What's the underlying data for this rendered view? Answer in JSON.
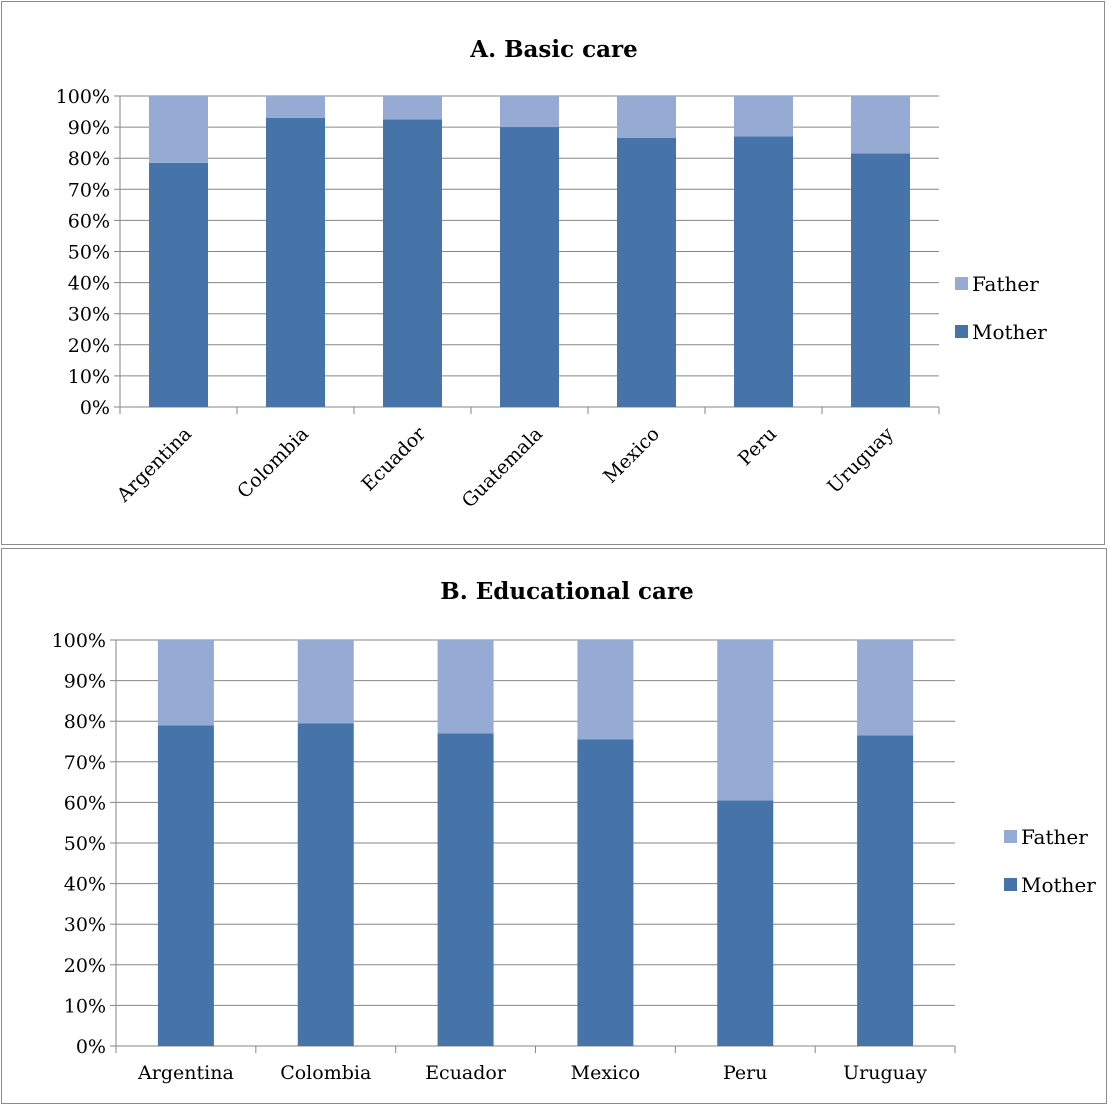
{
  "colors": {
    "mother": "#4674a8",
    "father": "#95abd3"
  },
  "chart_data": [
    {
      "type": "bar",
      "stacked": "percent",
      "title": "A. Basic care",
      "categories": [
        "Argentina",
        "Colombia",
        "Ecuador",
        "Guatemala",
        "Mexico",
        "Peru",
        "Uruguay"
      ],
      "series": [
        {
          "name": "Mother",
          "values": [
            78.5,
            93,
            92.5,
            90,
            86.5,
            87,
            81.5
          ]
        },
        {
          "name": "Father",
          "values": [
            21.5,
            7,
            7.5,
            10,
            13.5,
            13,
            18.5
          ]
        }
      ],
      "yticks": [
        "0%",
        "10%",
        "20%",
        "30%",
        "40%",
        "50%",
        "60%",
        "70%",
        "80%",
        "90%",
        "100%"
      ],
      "ylim": [
        0,
        100
      ],
      "grid": true,
      "legend": "right",
      "xlabel_rotation": "diagonal",
      "legend_entries": [
        "Father",
        "Mother"
      ]
    },
    {
      "type": "bar",
      "stacked": "percent",
      "title": "B. Educational care",
      "categories": [
        "Argentina",
        "Colombia",
        "Ecuador",
        "Mexico",
        "Peru",
        "Uruguay"
      ],
      "series": [
        {
          "name": "Mother",
          "values": [
            79,
            79.5,
            77,
            75.5,
            60.5,
            76.5
          ]
        },
        {
          "name": "Father",
          "values": [
            21,
            20.5,
            23,
            24.5,
            39.5,
            23.5
          ]
        }
      ],
      "yticks": [
        "0%",
        "10%",
        "20%",
        "30%",
        "40%",
        "50%",
        "60%",
        "70%",
        "80%",
        "90%",
        "100%"
      ],
      "ylim": [
        0,
        100
      ],
      "grid": true,
      "legend": "right",
      "xlabel_rotation": "horizontal",
      "legend_entries": [
        "Father",
        "Mother"
      ]
    }
  ]
}
